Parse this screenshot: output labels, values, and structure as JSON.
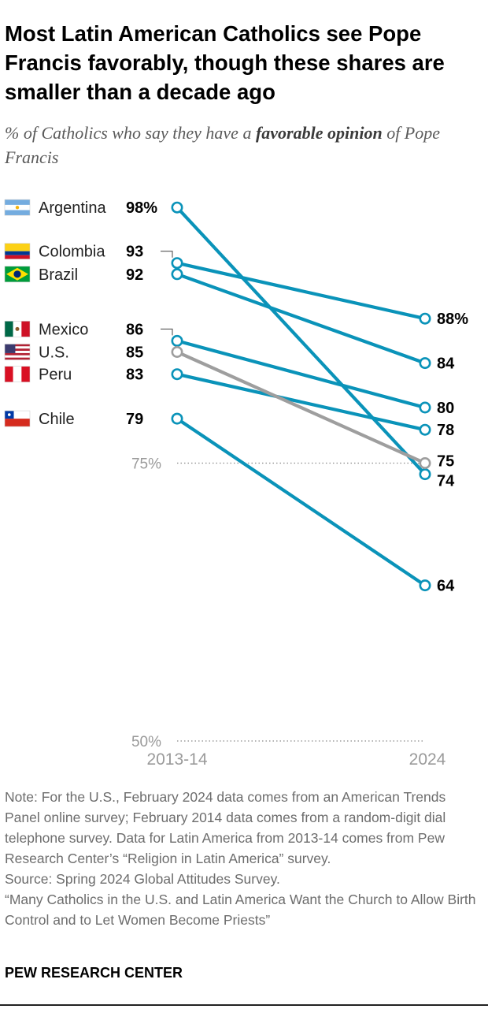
{
  "title": "Most Latin American Catholics see Pope Francis favorably, though these shares are smaller than a decade ago",
  "subtitle": {
    "prefix": "% of Catholics who say they have a ",
    "emphasis": "favorable opinion",
    "suffix": " of Pope Francis"
  },
  "colors": {
    "line": "#0a93b9",
    "us_line": "#9e9e9e",
    "marker_fill": "#ffffff",
    "value_text": "#000000",
    "label_text": "#222222",
    "axis_text": "#9a9a9a",
    "reference_line": "#8a8a8a"
  },
  "chart_data": {
    "type": "line",
    "x": [
      "2013-14",
      "2024"
    ],
    "series": [
      {
        "name": "Argentina",
        "values": [
          98,
          74
        ],
        "flag": "argentina-flag-icon",
        "start_label": "98%",
        "end_label": "74"
      },
      {
        "name": "Colombia",
        "values": [
          93,
          88
        ],
        "flag": "colombia-flag-icon",
        "start_label": "93",
        "end_label": "88%"
      },
      {
        "name": "Brazil",
        "values": [
          92,
          84
        ],
        "flag": "brazil-flag-icon",
        "start_label": "92",
        "end_label": "84"
      },
      {
        "name": "Mexico",
        "values": [
          86,
          80
        ],
        "flag": "mexico-flag-icon",
        "start_label": "86",
        "end_label": "80"
      },
      {
        "name": "U.S.",
        "values": [
          85,
          75
        ],
        "flag": "us-flag-icon",
        "start_label": "85",
        "end_label": "75",
        "highlight": "gray"
      },
      {
        "name": "Peru",
        "values": [
          83,
          78
        ],
        "flag": "peru-flag-icon",
        "start_label": "83",
        "end_label": "78"
      },
      {
        "name": "Chile",
        "values": [
          79,
          64
        ],
        "flag": "chile-flag-icon",
        "start_label": "79",
        "end_label": "64"
      }
    ],
    "reference_lines": [
      {
        "value": 75,
        "label": "75%"
      },
      {
        "value": 50,
        "label": "50%"
      }
    ],
    "ylim": [
      50,
      100
    ],
    "grid": false,
    "legend": "left"
  },
  "notes": {
    "note": "Note: For the U.S., February 2024 data comes from an American Trends Panel online survey; February 2014 data comes from a random-digit dial telephone survey. Data for Latin America from 2013-14 comes from Pew Research Center’s “Religion in Latin America” survey.",
    "source": "Source: Spring 2024 Global Attitudes Survey.",
    "report": "“Many Catholics in the U.S. and Latin America Want the Church to Allow Birth Control and to Let Women Become Priests”"
  },
  "brand": "PEW RESEARCH CENTER"
}
